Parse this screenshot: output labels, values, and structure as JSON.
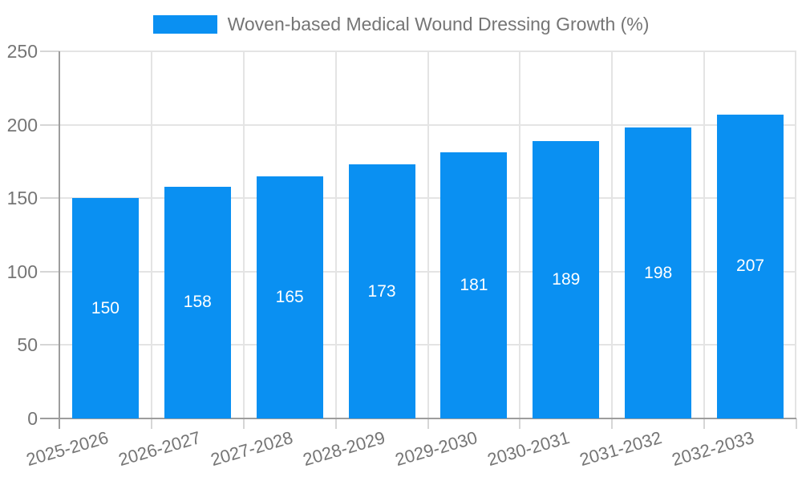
{
  "chart_data": {
    "type": "bar",
    "title": "Woven-based Medical Wound Dressing Growth (%)",
    "legend_entries": [
      "Woven-based Medical Wound Dressing Growth (%)"
    ],
    "legend_position": "top",
    "categories": [
      "2025-2026",
      "2026-2027",
      "2027-2028",
      "2028-2029",
      "2029-2030",
      "2030-2031",
      "2031-2032",
      "2032-2033"
    ],
    "values": [
      150,
      158,
      165,
      173,
      181,
      189,
      198,
      207
    ],
    "xlabel": "",
    "ylabel": "",
    "ylim": [
      0,
      250
    ],
    "yticks": [
      0,
      50,
      100,
      150,
      200,
      250
    ],
    "grid": true,
    "bar_label_position": "center",
    "colors": {
      "bar": "#0a90f2",
      "bar_label_text": "#ffffff",
      "axis_text": "#757575",
      "axis_line": "#9d9d9d",
      "tick_line": "#d6d6d6",
      "gridline": "#e4e4e4",
      "background": "#ffffff"
    }
  }
}
